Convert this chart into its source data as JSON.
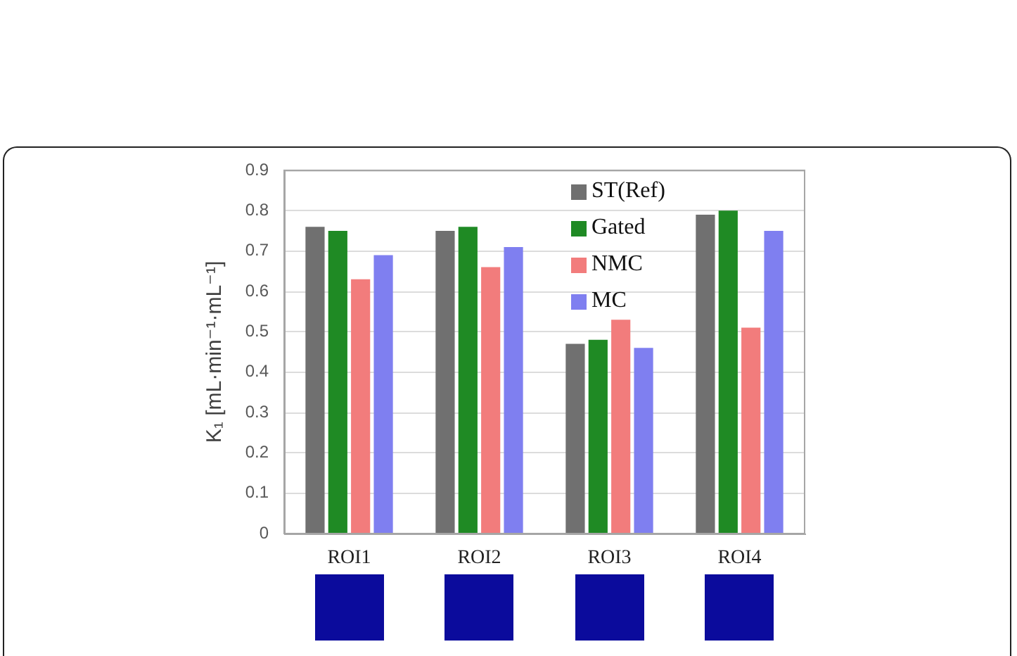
{
  "chart_data": {
    "type": "bar",
    "ylabel": "K₁ [mL·min⁻¹·mL⁻¹]",
    "categories": [
      "ROI1",
      "ROI2",
      "ROI3",
      "ROI4"
    ],
    "series": [
      {
        "name": "ST(Ref)",
        "color": "#707070",
        "values": [
          0.76,
          0.75,
          0.47,
          0.79
        ]
      },
      {
        "name": "Gated",
        "color": "#1f8a24",
        "values": [
          0.75,
          0.76,
          0.48,
          0.8
        ]
      },
      {
        "name": "NMC",
        "color": "#f27c7c",
        "values": [
          0.63,
          0.66,
          0.53,
          0.51
        ]
      },
      {
        "name": "MC",
        "color": "#7f7ff0",
        "values": [
          0.69,
          0.71,
          0.46,
          0.75
        ]
      }
    ],
    "ylim": [
      0,
      0.9
    ],
    "yticks": [
      0,
      0.1,
      0.2,
      0.3,
      0.4,
      0.5,
      0.6,
      0.7,
      0.8,
      0.9
    ],
    "grid": "y",
    "legend": "top right"
  }
}
